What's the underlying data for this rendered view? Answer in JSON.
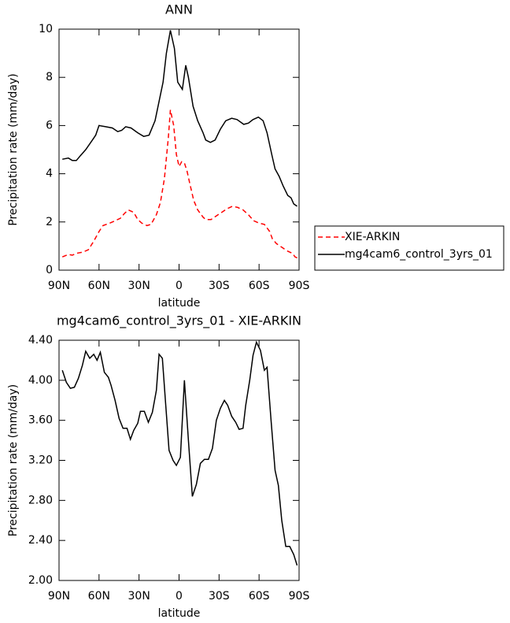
{
  "chart_data": [
    {
      "type": "line",
      "title": "ANN",
      "xlabel": "latitude",
      "ylabel": "Precipitation rate (mm/day)",
      "xlim": [
        90,
        -90
      ],
      "xticks": [
        {
          "value": 90,
          "label": "90N"
        },
        {
          "value": 60,
          "label": "60N"
        },
        {
          "value": 30,
          "label": "30N"
        },
        0,
        {
          "value": -30,
          "label": "30S"
        },
        {
          "value": -60,
          "label": "60S"
        },
        {
          "value": -90,
          "label": "90S"
        }
      ],
      "ylim": [
        0,
        10
      ],
      "yticks": [
        0,
        2,
        4,
        6,
        8,
        10
      ],
      "legend": "right",
      "series": [
        {
          "name": "XIE-ARKIN",
          "color": "#ff0000",
          "linestyle": "dashed",
          "x": [
            87.5,
            83,
            80,
            77,
            72,
            68,
            64,
            60,
            57,
            52,
            48,
            44,
            41,
            38,
            34,
            31,
            28,
            24,
            21,
            17,
            14,
            11,
            8,
            6.5,
            4,
            2,
            0,
            -2,
            -4,
            -6,
            -8,
            -11,
            -14,
            -18,
            -20,
            -24,
            -28,
            -32,
            -36,
            -40,
            -44,
            -48,
            -52,
            -56,
            -60,
            -64,
            -68,
            -70,
            -73,
            -77,
            -81,
            -85,
            -87,
            -89
          ],
          "values": [
            0.55,
            0.65,
            0.62,
            0.7,
            0.75,
            0.85,
            1.2,
            1.6,
            1.85,
            1.95,
            2.05,
            2.15,
            2.35,
            2.5,
            2.4,
            2.1,
            1.95,
            1.85,
            1.9,
            2.3,
            2.8,
            3.8,
            5.5,
            6.65,
            6.0,
            4.8,
            4.3,
            4.5,
            4.45,
            4.1,
            3.6,
            2.9,
            2.5,
            2.2,
            2.1,
            2.1,
            2.25,
            2.4,
            2.55,
            2.65,
            2.6,
            2.5,
            2.3,
            2.05,
            1.95,
            1.9,
            1.6,
            1.3,
            1.1,
            0.95,
            0.8,
            0.7,
            0.55,
            0.5
          ]
        },
        {
          "name": "mg4cam6_control_3yrs_01",
          "color": "#000000",
          "linestyle": "solid",
          "x": [
            87.5,
            83,
            80,
            77,
            74,
            70,
            65,
            62.5,
            60,
            55,
            50,
            46,
            43,
            40,
            36,
            31,
            26.5,
            22.5,
            18,
            15,
            12,
            9.5,
            6.5,
            3.5,
            1,
            -2.5,
            -5,
            -7,
            -10.5,
            -14,
            -18,
            -20,
            -23.5,
            -27,
            -31,
            -35,
            -39.5,
            -43.5,
            -48.5,
            -52,
            -55.5,
            -59.5,
            -63,
            -66,
            -69.5,
            -72,
            -75,
            -78,
            -81.5,
            -84,
            -86,
            -88.5
          ],
          "values": [
            4.6,
            4.65,
            4.55,
            4.55,
            4.75,
            5.0,
            5.4,
            5.6,
            6.0,
            5.95,
            5.9,
            5.75,
            5.8,
            5.95,
            5.9,
            5.7,
            5.55,
            5.6,
            6.2,
            7.0,
            7.8,
            9.0,
            9.95,
            9.2,
            7.8,
            7.5,
            8.5,
            8.0,
            6.8,
            6.2,
            5.7,
            5.4,
            5.3,
            5.4,
            5.85,
            6.2,
            6.3,
            6.25,
            6.05,
            6.1,
            6.25,
            6.35,
            6.2,
            5.7,
            4.8,
            4.2,
            3.9,
            3.5,
            3.1,
            3.0,
            2.75,
            2.65
          ]
        }
      ]
    },
    {
      "type": "line",
      "title": "mg4cam6_control_3yrs_01 - XIE-ARKIN",
      "xlabel": "latitude",
      "ylabel": "Precipitation rate (mm/day)",
      "xlim": [
        90,
        -90
      ],
      "xticks": [
        {
          "value": 90,
          "label": "90N"
        },
        {
          "value": 60,
          "label": "60N"
        },
        {
          "value": 30,
          "label": "30N"
        },
        0,
        {
          "value": -30,
          "label": "30S"
        },
        {
          "value": -60,
          "label": "60S"
        },
        {
          "value": -90,
          "label": "90S"
        }
      ],
      "ylim": [
        2,
        4.4
      ],
      "yticks": [
        {
          "value": 2,
          "label": "2.00"
        },
        {
          "value": 2.4,
          "label": "2.40"
        },
        {
          "value": 2.8,
          "label": "2.80"
        },
        {
          "value": 3.2,
          "label": "3.20"
        },
        {
          "value": 3.6,
          "label": "3.60"
        },
        {
          "value": 4,
          "label": "4.00"
        },
        {
          "value": 4.4,
          "label": "4.40"
        }
      ],
      "color": "#000000",
      "x": [
        87.5,
        84.5,
        81.5,
        78.5,
        75.5,
        72.5,
        70,
        67,
        64,
        61.5,
        59,
        56,
        53,
        51,
        48,
        45,
        42,
        39,
        36.5,
        34,
        31,
        29,
        26,
        23,
        20,
        17,
        15,
        12.5,
        10,
        7.5,
        4.5,
        2,
        -1,
        -4,
        -7,
        -10,
        -13,
        -16,
        -19,
        -22,
        -25,
        -28,
        -31,
        -34,
        -36.5,
        -39.5,
        -42.5,
        -45,
        -48,
        -50,
        -53,
        -55.5,
        -58,
        -61,
        -64,
        -66,
        -69,
        -72,
        -74.5,
        -77,
        -80,
        -83,
        -86,
        -88.5
      ],
      "values": [
        4.1,
        3.98,
        3.92,
        3.93,
        4.02,
        4.15,
        4.29,
        4.22,
        4.26,
        4.2,
        4.28,
        4.08,
        4.03,
        3.95,
        3.8,
        3.62,
        3.52,
        3.52,
        3.41,
        3.5,
        3.57,
        3.69,
        3.69,
        3.58,
        3.68,
        3.9,
        4.26,
        4.22,
        3.75,
        3.3,
        3.2,
        3.15,
        3.23,
        4.0,
        3.4,
        2.84,
        2.96,
        3.17,
        3.21,
        3.21,
        3.32,
        3.6,
        3.72,
        3.8,
        3.75,
        3.64,
        3.58,
        3.51,
        3.52,
        3.75,
        4.0,
        4.25,
        4.38,
        4.3,
        4.1,
        4.13,
        3.6,
        3.1,
        2.95,
        2.6,
        2.34,
        2.34,
        2.26,
        2.15
      ]
    }
  ]
}
